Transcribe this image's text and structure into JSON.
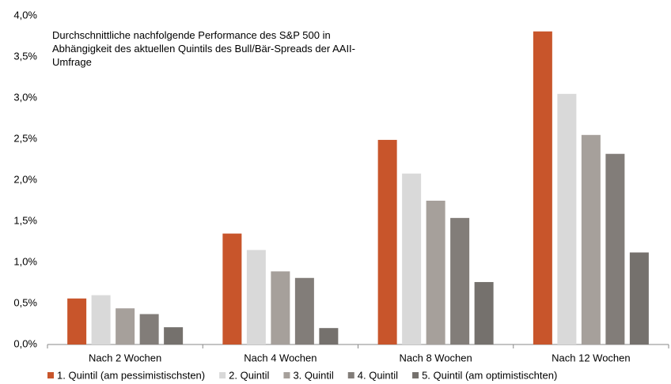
{
  "chart_data": {
    "type": "bar",
    "title": "Durchschnittliche nachfolgende Performance des S&P 500 in Abhängigkeit des aktuellen Quintils des Bull/Bär-Spreads der AAII-Umfrage",
    "categories": [
      "Nach 2 Wochen",
      "Nach 4 Wochen",
      "Nach 8 Wochen",
      "Nach 12 Wochen"
    ],
    "series": [
      {
        "name": "1. Quintil (am pessimistischsten)",
        "color": "#c8552b",
        "values": [
          0.56,
          1.35,
          2.49,
          3.81
        ]
      },
      {
        "name": "2. Quintil",
        "color": "#d9d9d9",
        "values": [
          0.6,
          1.15,
          2.08,
          3.05
        ]
      },
      {
        "name": "3. Quintil",
        "color": "#a6a09b",
        "values": [
          0.44,
          0.89,
          1.75,
          2.55
        ]
      },
      {
        "name": "4. Quintil",
        "color": "#827d79",
        "values": [
          0.37,
          0.81,
          1.54,
          2.32
        ]
      },
      {
        "name": "5. Quintil (am optimistischten)",
        "color": "#75716d",
        "values": [
          0.21,
          0.2,
          0.76,
          1.12
        ]
      }
    ],
    "ylim": [
      0,
      4.0
    ],
    "yticks": [
      {
        "value": 0,
        "label": "0,0%"
      },
      {
        "value": 0.5,
        "label": "0,5%"
      },
      {
        "value": 1.0,
        "label": "1,0%"
      },
      {
        "value": 1.5,
        "label": "1,5%"
      },
      {
        "value": 2.0,
        "label": "2,0%"
      },
      {
        "value": 2.5,
        "label": "2,5%"
      },
      {
        "value": 3.0,
        "label": "3,0%"
      },
      {
        "value": 3.5,
        "label": "3,5%"
      },
      {
        "value": 4.0,
        "label": "4,0%"
      }
    ],
    "grid": false
  }
}
